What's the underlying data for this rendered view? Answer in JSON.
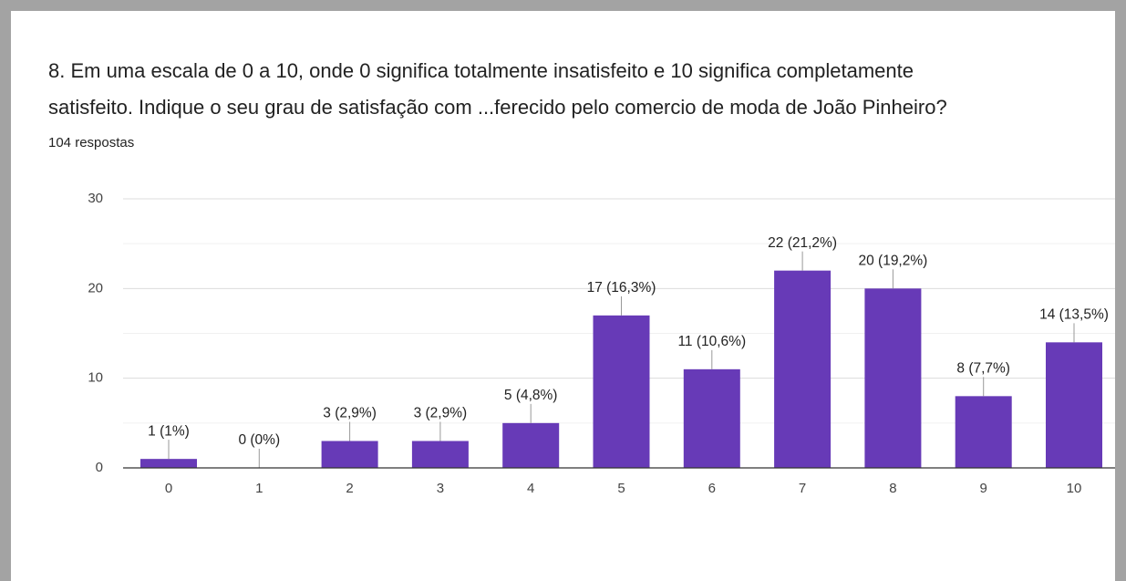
{
  "chart_data": {
    "type": "bar",
    "title_lines": [
      "8. Em uma escala de 0 a 10, onde 0 significa totalmente insatisfeito e 10 significa completamente",
      "satisfeito. Indique o seu grau de satisfação com ...ferecido pelo comercio de moda de João Pinheiro?"
    ],
    "subtitle": "104 respostas",
    "categories": [
      "0",
      "1",
      "2",
      "3",
      "4",
      "5",
      "6",
      "7",
      "8",
      "9",
      "10"
    ],
    "values": [
      1,
      0,
      3,
      3,
      5,
      17,
      11,
      22,
      20,
      8,
      14
    ],
    "value_labels": [
      "1 (1%)",
      "0 (0%)",
      "3 (2,9%)",
      "3 (2,9%)",
      "5 (4,8%)",
      "17 (16,3%)",
      "11 (10,6%)",
      "22 (21,2%)",
      "20 (19,2%)",
      "8 (7,7%)",
      "14 (13,5%)"
    ],
    "color": "#673ab7",
    "ylim": [
      0,
      30
    ],
    "yticks": [
      0,
      10,
      20,
      30
    ],
    "minor_yticks": [
      5,
      15,
      25
    ],
    "grid": true
  }
}
